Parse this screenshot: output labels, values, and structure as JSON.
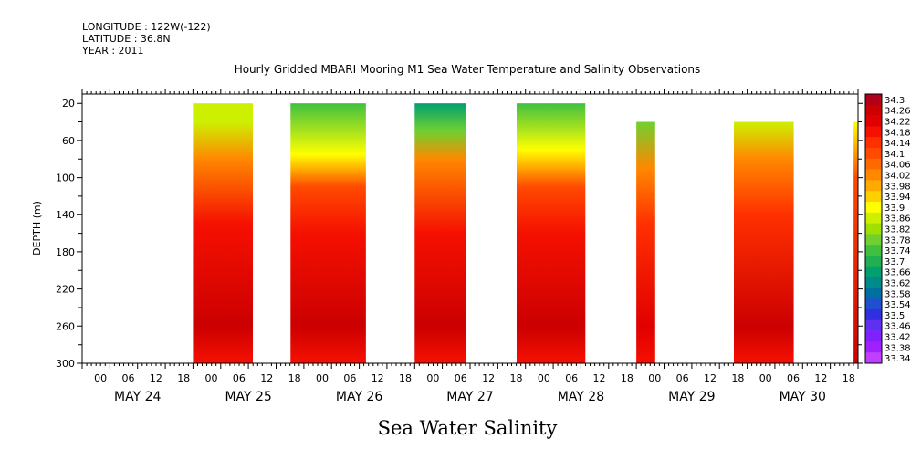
{
  "header": {
    "longitude": "LONGITUDE : 122W(-122)",
    "latitude": "LATITUDE : 36.8N",
    "year": "YEAR : 2011"
  },
  "chart_data": {
    "type": "heatmap",
    "title": "Hourly Gridded MBARI Mooring M1 Sea Water Temperature and Salinity Observations",
    "xlabel": "Sea Water Salinity",
    "ylabel": "DEPTH (m)",
    "ylim": [
      300,
      10
    ],
    "x_hour_ticks": [
      "00",
      "06",
      "12",
      "18",
      "00",
      "06",
      "12",
      "18",
      "00",
      "06",
      "12",
      "18",
      "00",
      "06",
      "12",
      "18",
      "00",
      "06",
      "12",
      "18",
      "00",
      "06",
      "12",
      "18",
      "00",
      "06",
      "12",
      "18"
    ],
    "x_day_labels": [
      "MAY 24",
      "MAY 25",
      "MAY 26",
      "MAY 27",
      "MAY 28",
      "MAY 29",
      "MAY 30"
    ],
    "y_ticks": [
      "20",
      "60",
      "100",
      "140",
      "180",
      "220",
      "260",
      "300"
    ],
    "y_tick_values": [
      20,
      60,
      100,
      140,
      180,
      220,
      260,
      300
    ],
    "colorbar_levels": [
      "34.3",
      "34.26",
      "34.22",
      "34.18",
      "34.14",
      "34.1",
      "34.06",
      "34.02",
      "33.98",
      "33.94",
      "33.9",
      "33.86",
      "33.82",
      "33.78",
      "33.74",
      "33.7",
      "33.66",
      "33.62",
      "33.58",
      "33.54",
      "33.5",
      "33.46",
      "33.42",
      "33.38",
      "33.34"
    ],
    "colorbar_colors": [
      "#b0001a",
      "#cc0000",
      "#e00000",
      "#f51000",
      "#ff3000",
      "#ff4a00",
      "#ff6a00",
      "#ff8800",
      "#ffaa00",
      "#ffd000",
      "#ffff00",
      "#ccf000",
      "#a0e000",
      "#70d030",
      "#40c040",
      "#20b050",
      "#00a070",
      "#008a8a",
      "#0070a0",
      "#2050d0",
      "#3030e0",
      "#6030f0",
      "#8020ff",
      "#a020ff",
      "#c040ff"
    ],
    "x_days_range": [
      0,
      7
    ],
    "data_segments": [
      {
        "start_day": 1.0,
        "end_day": 1.54,
        "top_depth": 20,
        "profile": [
          [
            "33.86",
            40
          ],
          [
            "34.0",
            80
          ],
          [
            "34.18",
            150
          ],
          [
            "34.26",
            260
          ],
          [
            "34.18",
            300
          ]
        ]
      },
      {
        "start_day": 1.88,
        "end_day": 2.56,
        "top_depth": 20,
        "profile": [
          [
            "33.74",
            20
          ],
          [
            "33.9",
            75
          ],
          [
            "34.1",
            110
          ],
          [
            "34.18",
            160
          ],
          [
            "34.26",
            260
          ],
          [
            "34.18",
            300
          ]
        ]
      },
      {
        "start_day": 3.0,
        "end_day": 3.46,
        "top_depth": 20,
        "profile": [
          [
            "33.66",
            20
          ],
          [
            "33.8",
            50
          ],
          [
            "34.0",
            80
          ],
          [
            "34.18",
            160
          ],
          [
            "34.26",
            260
          ],
          [
            "34.18",
            300
          ]
        ]
      },
      {
        "start_day": 3.92,
        "end_day": 4.54,
        "top_depth": 20,
        "profile": [
          [
            "33.74",
            20
          ],
          [
            "33.9",
            70
          ],
          [
            "34.1",
            110
          ],
          [
            "34.18",
            160
          ],
          [
            "34.26",
            260
          ],
          [
            "34.18",
            300
          ]
        ]
      },
      {
        "start_day": 5.0,
        "end_day": 5.17,
        "top_depth": 40,
        "profile": [
          [
            "33.78",
            40
          ],
          [
            "34.0",
            90
          ],
          [
            "34.14",
            150
          ],
          [
            "34.22",
            260
          ],
          [
            "34.18",
            300
          ]
        ]
      },
      {
        "start_day": 5.88,
        "end_day": 6.42,
        "top_depth": 40,
        "profile": [
          [
            "33.86",
            40
          ],
          [
            "34.02",
            80
          ],
          [
            "34.14",
            140
          ],
          [
            "34.26",
            260
          ],
          [
            "34.18",
            300
          ]
        ]
      },
      {
        "start_day": 6.96,
        "end_day": 7.0,
        "top_depth": 40,
        "profile": [
          [
            "33.9",
            40
          ],
          [
            "34.1",
            100
          ],
          [
            "34.26",
            300
          ]
        ]
      }
    ]
  }
}
